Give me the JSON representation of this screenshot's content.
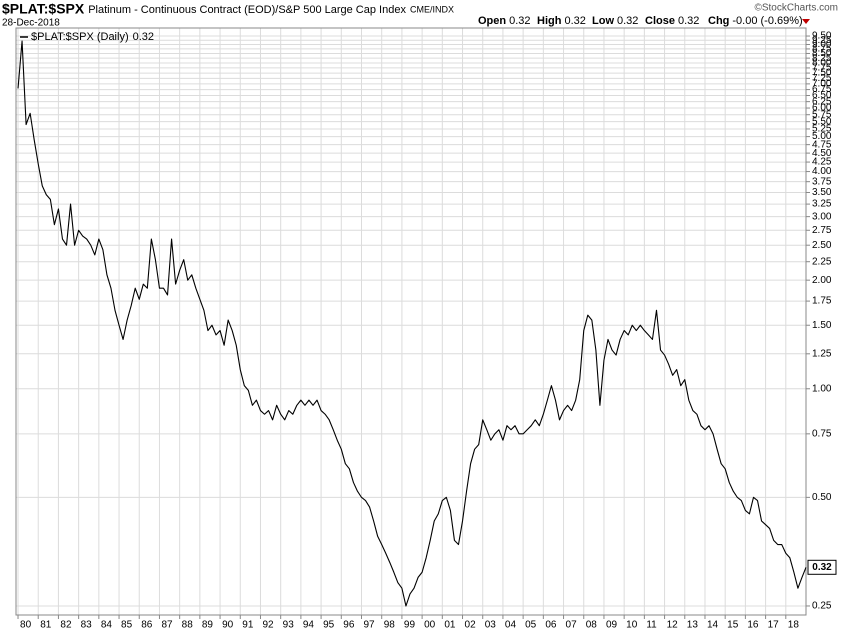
{
  "chart_data": {
    "type": "line",
    "title": "$PLAT:$SPX",
    "subtitle": "Platinum - Continuous Contract (EOD)/S&P 500 Large Cap Index",
    "exchange": "CME/INDX",
    "date": "28-Dec-2018",
    "watermark": "©StockCharts.com",
    "quote": [
      {
        "label": "Open",
        "value": 0.32
      },
      {
        "label": "High",
        "value": 0.32
      },
      {
        "label": "Low",
        "value": 0.32
      },
      {
        "label": "Close",
        "value": 0.32
      },
      {
        "label": "Chg",
        "value": "-0.00 (-0.69%)"
      }
    ],
    "last_value": 0.32,
    "log_scale": true,
    "grid": true,
    "legend": "top-left",
    "xlim": [
      1979.9,
      2019.0
    ],
    "ylim": [
      0.236,
      10.0
    ],
    "xticks": [
      {
        "value": 1980,
        "label": "80"
      },
      {
        "value": 1981,
        "label": "81"
      },
      {
        "value": 1982,
        "label": "82"
      },
      {
        "value": 1983,
        "label": "83"
      },
      {
        "value": 1984,
        "label": "84"
      },
      {
        "value": 1985,
        "label": "85"
      },
      {
        "value": 1986,
        "label": "86"
      },
      {
        "value": 1987,
        "label": "87"
      },
      {
        "value": 1988,
        "label": "88"
      },
      {
        "value": 1989,
        "label": "89"
      },
      {
        "value": 1990,
        "label": "90"
      },
      {
        "value": 1991,
        "label": "91"
      },
      {
        "value": 1992,
        "label": "92"
      },
      {
        "value": 1993,
        "label": "93"
      },
      {
        "value": 1994,
        "label": "94"
      },
      {
        "value": 1995,
        "label": "95"
      },
      {
        "value": 1996,
        "label": "96"
      },
      {
        "value": 1997,
        "label": "97"
      },
      {
        "value": 1998,
        "label": "98"
      },
      {
        "value": 1999,
        "label": "99"
      },
      {
        "value": 2000,
        "label": "00"
      },
      {
        "value": 2001,
        "label": "01"
      },
      {
        "value": 2002,
        "label": "02"
      },
      {
        "value": 2003,
        "label": "03"
      },
      {
        "value": 2004,
        "label": "04"
      },
      {
        "value": 2005,
        "label": "05"
      },
      {
        "value": 2006,
        "label": "06"
      },
      {
        "value": 2007,
        "label": "07"
      },
      {
        "value": 2008,
        "label": "08"
      },
      {
        "value": 2009,
        "label": "09"
      },
      {
        "value": 2010,
        "label": "10"
      },
      {
        "value": 2011,
        "label": "11"
      },
      {
        "value": 2012,
        "label": "12"
      },
      {
        "value": 2013,
        "label": "13"
      },
      {
        "value": 2014,
        "label": "14"
      },
      {
        "value": 2015,
        "label": "15"
      },
      {
        "value": 2016,
        "label": "16"
      },
      {
        "value": 2017,
        "label": "17"
      },
      {
        "value": 2018,
        "label": "18"
      }
    ],
    "yticks": [
      0.25,
      {
        "value": 0.5,
        "label": "0.50"
      },
      0.75,
      {
        "value": 1,
        "label": "1.00"
      },
      1.25,
      {
        "value": 1.5,
        "label": "1.50"
      },
      1.75,
      {
        "value": 2,
        "label": "2.00"
      },
      2.25,
      {
        "value": 2.5,
        "label": "2.50"
      },
      2.75,
      {
        "value": 3,
        "label": "3.00"
      },
      3.25,
      {
        "value": 3.5,
        "label": "3.50"
      },
      3.75,
      {
        "value": 4,
        "label": "4.00"
      },
      4.25,
      {
        "value": 4.5,
        "label": "4.50"
      },
      4.75,
      {
        "value": 5,
        "label": "5.00"
      },
      5.25,
      {
        "value": 5.5,
        "label": "5.50"
      },
      5.75,
      {
        "value": 6,
        "label": "6.00"
      },
      6.25,
      {
        "value": 6.5,
        "label": "6.50"
      },
      6.75,
      {
        "value": 7,
        "label": "7.00"
      },
      7.25,
      {
        "value": 7.5,
        "label": "7.50"
      },
      7.75,
      {
        "value": 8,
        "label": "8.00"
      },
      8.25,
      {
        "value": 8.5,
        "label": "8.50"
      },
      8.75,
      {
        "value": 9,
        "label": "9.00"
      },
      9.25,
      {
        "value": 9.5,
        "label": "9.50"
      }
    ],
    "x": [
      1980,
      1980.2,
      1980.4,
      1980.6,
      1980.8,
      1981,
      1981.2,
      1981.4,
      1981.6,
      1981.8,
      1982,
      1982.2,
      1982.4,
      1982.6,
      1982.8,
      1983,
      1983.2,
      1983.4,
      1983.6,
      1983.8,
      1984,
      1984.2,
      1984.4,
      1984.6,
      1984.8,
      1985,
      1985.2,
      1985.4,
      1985.6,
      1985.8,
      1986,
      1986.2,
      1986.4,
      1986.6,
      1986.8,
      1987,
      1987.2,
      1987.4,
      1987.6,
      1987.8,
      1988,
      1988.2,
      1988.4,
      1988.6,
      1988.8,
      1989,
      1989.2,
      1989.4,
      1989.6,
      1989.8,
      1990,
      1990.2,
      1990.4,
      1990.6,
      1990.8,
      1991,
      1991.2,
      1991.4,
      1991.6,
      1991.8,
      1992,
      1992.2,
      1992.4,
      1992.6,
      1992.8,
      1993,
      1993.2,
      1993.4,
      1993.6,
      1993.8,
      1994,
      1994.2,
      1994.4,
      1994.6,
      1994.8,
      1995,
      1995.2,
      1995.4,
      1995.6,
      1995.8,
      1996,
      1996.2,
      1996.4,
      1996.6,
      1996.8,
      1997,
      1997.2,
      1997.4,
      1997.6,
      1997.8,
      1998,
      1998.2,
      1998.4,
      1998.6,
      1998.8,
      1999,
      1999.2,
      1999.4,
      1999.6,
      1999.8,
      2000,
      2000.2,
      2000.4,
      2000.6,
      2000.8,
      2001,
      2001.2,
      2001.4,
      2001.6,
      2001.8,
      2002,
      2002.2,
      2002.4,
      2002.6,
      2002.8,
      2003,
      2003.2,
      2003.4,
      2003.6,
      2003.8,
      2004,
      2004.2,
      2004.4,
      2004.6,
      2004.8,
      2005,
      2005.2,
      2005.4,
      2005.6,
      2005.8,
      2006,
      2006.2,
      2006.4,
      2006.6,
      2006.8,
      2007,
      2007.2,
      2007.4,
      2007.6,
      2007.8,
      2008,
      2008.2,
      2008.4,
      2008.6,
      2008.8,
      2009,
      2009.2,
      2009.4,
      2009.6,
      2009.8,
      2010,
      2010.2,
      2010.4,
      2010.6,
      2010.8,
      2011,
      2011.2,
      2011.4,
      2011.6,
      2011.8,
      2012,
      2012.2,
      2012.4,
      2012.6,
      2012.8,
      2013,
      2013.2,
      2013.4,
      2013.6,
      2013.8,
      2014,
      2014.2,
      2014.4,
      2014.6,
      2014.8,
      2015,
      2015.2,
      2015.4,
      2015.6,
      2015.8,
      2016,
      2016.2,
      2016.4,
      2016.6,
      2016.8,
      2017,
      2017.2,
      2017.4,
      2017.6,
      2017.8,
      2018,
      2018.2,
      2018.4,
      2018.6,
      2018.8,
      2019
    ],
    "series": [
      {
        "name": "$PLAT:$SPX (Daily)",
        "color": "#000000",
        "values": [
          6.8,
          9.2,
          5.4,
          5.8,
          4.9,
          4.2,
          3.65,
          3.45,
          3.35,
          2.85,
          3.15,
          2.6,
          2.5,
          3.25,
          2.5,
          2.75,
          2.65,
          2.6,
          2.5,
          2.35,
          2.6,
          2.43,
          2.07,
          1.9,
          1.65,
          1.5,
          1.37,
          1.55,
          1.7,
          1.9,
          1.77,
          1.95,
          1.9,
          2.6,
          2.28,
          1.9,
          1.9,
          1.82,
          2.6,
          1.95,
          2.13,
          2.28,
          2.0,
          2.07,
          1.9,
          1.77,
          1.65,
          1.45,
          1.5,
          1.41,
          1.45,
          1.32,
          1.55,
          1.45,
          1.32,
          1.13,
          1.02,
          0.99,
          0.9,
          0.93,
          0.87,
          0.85,
          0.87,
          0.82,
          0.9,
          0.85,
          0.82,
          0.87,
          0.85,
          0.9,
          0.93,
          0.9,
          0.93,
          0.9,
          0.93,
          0.87,
          0.85,
          0.82,
          0.77,
          0.72,
          0.68,
          0.62,
          0.6,
          0.55,
          0.52,
          0.5,
          0.49,
          0.47,
          0.43,
          0.39,
          0.37,
          0.35,
          0.33,
          0.31,
          0.29,
          0.28,
          0.25,
          0.27,
          0.28,
          0.3,
          0.31,
          0.34,
          0.38,
          0.43,
          0.45,
          0.49,
          0.5,
          0.46,
          0.38,
          0.37,
          0.43,
          0.52,
          0.62,
          0.68,
          0.7,
          0.82,
          0.77,
          0.72,
          0.75,
          0.77,
          0.72,
          0.79,
          0.77,
          0.79,
          0.75,
          0.75,
          0.77,
          0.79,
          0.82,
          0.79,
          0.85,
          0.93,
          1.02,
          0.93,
          0.82,
          0.87,
          0.9,
          0.87,
          0.93,
          1.06,
          1.45,
          1.6,
          1.55,
          1.28,
          0.9,
          1.2,
          1.37,
          1.28,
          1.24,
          1.37,
          1.45,
          1.41,
          1.5,
          1.45,
          1.5,
          1.45,
          1.41,
          1.37,
          1.65,
          1.28,
          1.24,
          1.17,
          1.09,
          1.13,
          1.02,
          1.06,
          0.93,
          0.87,
          0.85,
          0.79,
          0.77,
          0.79,
          0.75,
          0.68,
          0.62,
          0.6,
          0.55,
          0.52,
          0.5,
          0.49,
          0.46,
          0.45,
          0.5,
          0.49,
          0.43,
          0.42,
          0.41,
          0.38,
          0.37,
          0.37,
          0.35,
          0.34,
          0.31,
          0.28,
          0.3,
          0.32
        ]
      }
    ]
  }
}
